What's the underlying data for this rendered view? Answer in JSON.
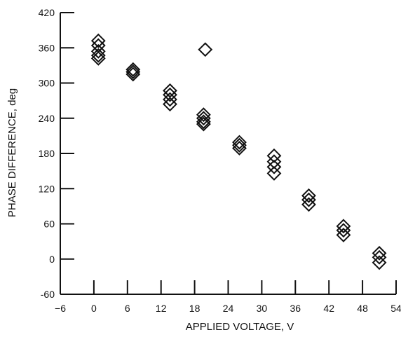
{
  "chart_data": {
    "type": "scatter",
    "title": "",
    "xlabel": "APPLIED VOLTAGE, V",
    "ylabel": "PHASE DIFFERENCE, deg",
    "xlim": [
      -6,
      54
    ],
    "ylim": [
      -60,
      420
    ],
    "xticks": [
      -6,
      0,
      6,
      12,
      18,
      24,
      30,
      36,
      42,
      48,
      54
    ],
    "yticks": [
      -60,
      0,
      60,
      120,
      180,
      240,
      300,
      360,
      420
    ],
    "xtick_labels": [
      "−6",
      "0",
      "6",
      "12",
      "18",
      "24",
      "30",
      "36",
      "42",
      "48",
      "54"
    ],
    "ytick_labels": [
      "-60",
      "0",
      "60",
      "120",
      "180",
      "240",
      "300",
      "360",
      "420"
    ],
    "marker": "diamond-open",
    "grid": false,
    "series": [
      {
        "points": [
          [
            0.8,
            372
          ],
          [
            0.8,
            364
          ],
          [
            0.8,
            354
          ],
          [
            0.8,
            347
          ],
          [
            0.8,
            342
          ],
          [
            7.0,
            323
          ],
          [
            7.0,
            319
          ],
          [
            7.0,
            315
          ],
          [
            13.6,
            287
          ],
          [
            13.6,
            280
          ],
          [
            13.6,
            272
          ],
          [
            13.6,
            264
          ],
          [
            19.6,
            246
          ],
          [
            19.6,
            240
          ],
          [
            19.6,
            234
          ],
          [
            19.6,
            230
          ],
          [
            19.9,
            357
          ],
          [
            26.0,
            199
          ],
          [
            26.0,
            194
          ],
          [
            26.0,
            189
          ],
          [
            32.2,
            176
          ],
          [
            32.2,
            166
          ],
          [
            32.2,
            157
          ],
          [
            32.2,
            146
          ],
          [
            38.4,
            108
          ],
          [
            38.4,
            101
          ],
          [
            38.4,
            93
          ],
          [
            44.6,
            56
          ],
          [
            44.6,
            49
          ],
          [
            44.6,
            41
          ],
          [
            51.0,
            10
          ],
          [
            51.0,
            3
          ],
          [
            51.0,
            -6
          ]
        ]
      }
    ]
  }
}
